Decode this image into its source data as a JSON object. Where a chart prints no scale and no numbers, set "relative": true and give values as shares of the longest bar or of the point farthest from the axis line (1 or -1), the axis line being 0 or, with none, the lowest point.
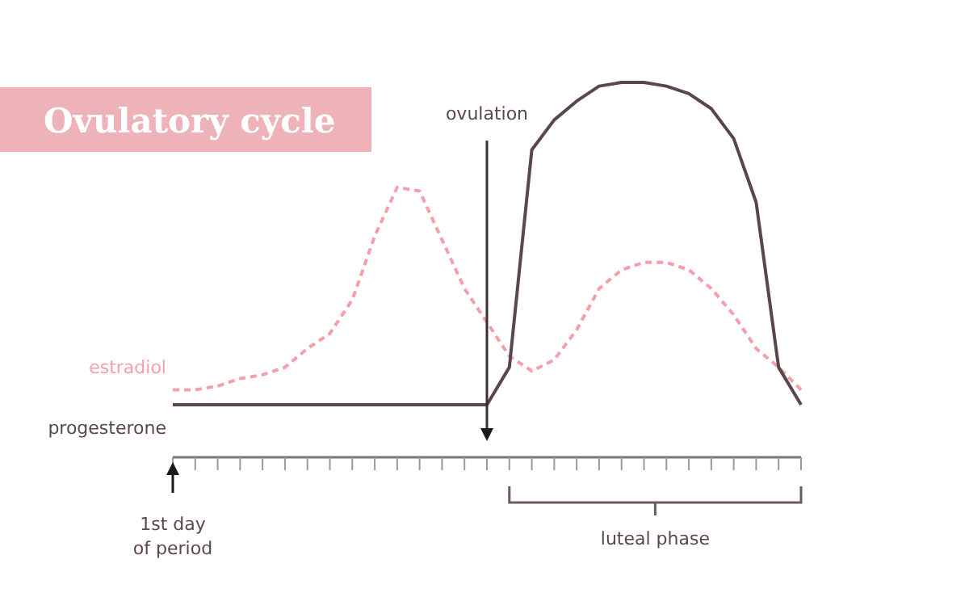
{
  "chart_data": {
    "type": "line",
    "title": "Ovulatory cycle",
    "relative": true,
    "categories": [
      null,
      null,
      null,
      null,
      null,
      null,
      null,
      null,
      null,
      null,
      null,
      null,
      null,
      null,
      null,
      null,
      null,
      null,
      null,
      null,
      null,
      null,
      null,
      null,
      null,
      null,
      null,
      null,
      null
    ],
    "series": [
      {
        "name": "estradiol",
        "color": "#f4a0a8",
        "line_style": "dashed",
        "values": [
          0.18,
          0.18,
          0.19,
          0.21,
          0.22,
          0.24,
          0.29,
          0.33,
          0.42,
          0.59,
          0.72,
          0.71,
          0.58,
          0.45,
          0.36,
          0.27,
          0.23,
          0.26,
          0.34,
          0.45,
          0.5,
          0.52,
          0.52,
          0.5,
          0.45,
          0.38,
          0.29,
          0.24,
          0.18
        ]
      },
      {
        "name": "progesterone",
        "color": "#5a474b",
        "line_style": "solid",
        "values": [
          0.14,
          0.14,
          0.14,
          0.14,
          0.14,
          0.14,
          0.14,
          0.14,
          0.14,
          0.14,
          0.14,
          0.14,
          0.14,
          0.14,
          0.14,
          0.24,
          0.82,
          0.9,
          0.95,
          0.99,
          1,
          1,
          0.99,
          0.97,
          0.93,
          0.85,
          0.68,
          0.24,
          0.14
        ]
      }
    ],
    "annotations": [
      "ovulation",
      "luteal phase",
      "1st day\nof period"
    ],
    "marker": "none"
  }
}
